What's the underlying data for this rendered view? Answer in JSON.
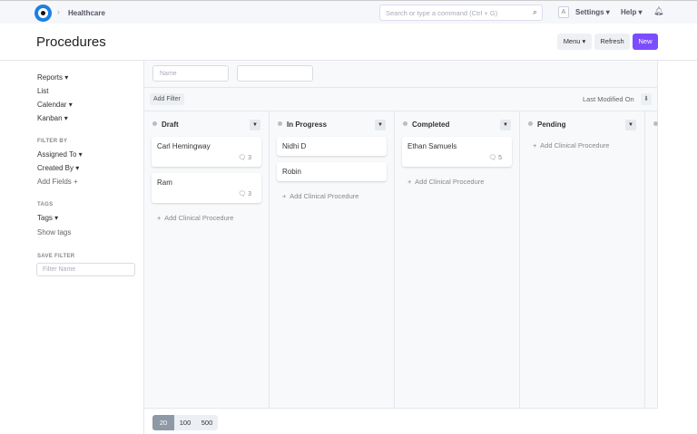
{
  "nav": {
    "breadcrumb": "Healthcare",
    "search_placeholder": "Search or type a command (Ctrl + G)",
    "avatar": "A",
    "settings": "Settings ▾",
    "help": "Help ▾"
  },
  "page": {
    "title": "Procedures",
    "menu": "Menu ▾",
    "refresh": "Refresh",
    "new": "New",
    "new_color": "#7c4dff"
  },
  "sidebar": {
    "views": [
      "Reports ▾",
      "List",
      "Calendar ▾",
      "Kanban ▾"
    ],
    "filter_by": "FILTER BY",
    "filters": [
      "Assigned To ▾",
      "Created By ▾"
    ],
    "add_fields": "Add Fields +",
    "tags_header": "TAGS",
    "tags": "Tags ▾",
    "show_tags": "Show tags",
    "save_filter": "SAVE FILTER",
    "filter_name_placeholder": "Filter Name"
  },
  "filters": {
    "name_placeholder": "Name",
    "add_filter": "Add Filter",
    "sort_label": "Last Modified On"
  },
  "columns": [
    {
      "title": "Draft",
      "cards": [
        {
          "name": "Carl Hemingway",
          "comments": "3"
        },
        {
          "name": "Ram",
          "comments": "3"
        }
      ],
      "add": "Add Clinical Procedure"
    },
    {
      "title": "In Progress",
      "cards": [
        {
          "name": "Nidhi D"
        },
        {
          "name": "Robin"
        }
      ],
      "add": "Add Clinical Procedure"
    },
    {
      "title": "Completed",
      "cards": [
        {
          "name": "Ethan Samuels",
          "comments": "5"
        }
      ],
      "add": "Add Clinical Procedure"
    },
    {
      "title": "Pending",
      "cards": [],
      "add": "Add Clinical Procedure"
    }
  ],
  "paging": [
    "20",
    "100",
    "500"
  ]
}
